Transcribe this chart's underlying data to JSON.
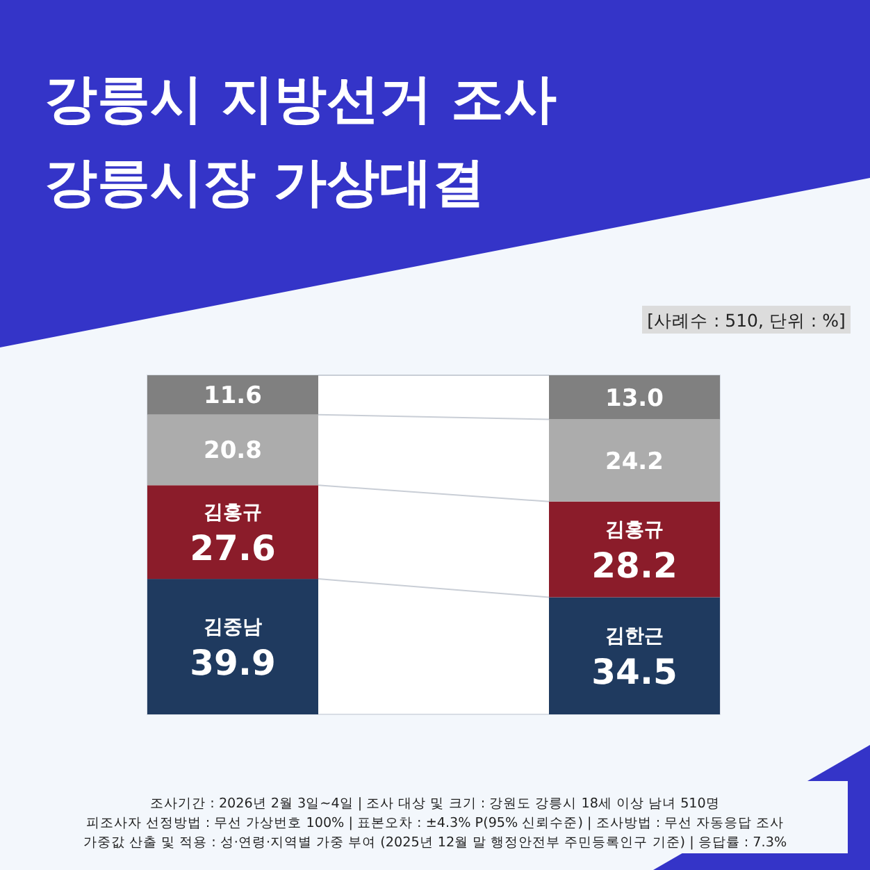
{
  "chart_data": {
    "type": "bar",
    "stacked": true,
    "title": "강릉시 지방선거 조사\n강릉시장 가상대결",
    "subtitle": "[사례수 : 510, 단위 : %]",
    "categories": [
      null,
      null
    ],
    "series": [
      {
        "color": "#1f3a5f",
        "values": [
          39.9,
          34.5
        ],
        "value_labels": [
          "김중남\n39.9",
          "김한근\n34.5"
        ]
      },
      {
        "color": "#8b1c2a",
        "values": [
          27.6,
          28.2
        ],
        "value_labels": [
          "김홍규\n27.6",
          "김홍규\n28.2"
        ]
      },
      {
        "color": "#acacac",
        "values": [
          20.8,
          24.2
        ],
        "value_labels": [
          "20.8",
          "24.2"
        ]
      },
      {
        "color": "#808080",
        "values": [
          11.6,
          13.0
        ],
        "value_labels": [
          "11.6",
          "13.0"
        ]
      }
    ],
    "annotations": [
      "조사기간 : 2026년 2월 3일~4일 | 조사 대상 및 크기 : 강원도 강릉시 18세 이상 남녀 510명",
      "피조사자 선정방법 : 무선 가상번호 100% | 표본오차 : ±4.3% P(95% 신뢰수준) |  조사방법 : 무선 자동응답 조사",
      "가중값 산출 및 적용 : 성·연령·지역별 가중 부여 (2025년 12월 말 행정안전부 주민등록인구 기준) | 응답률 : 7.3%"
    ]
  }
}
